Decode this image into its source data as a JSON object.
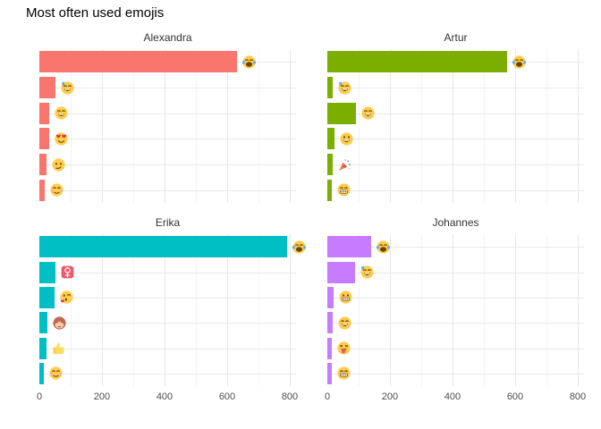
{
  "title": "Most often used emojis",
  "chart_data": {
    "type": "bar",
    "orientation": "horizontal",
    "title": "Most often used emojis",
    "xlim": [
      0,
      820
    ],
    "xticks": [
      0,
      200,
      400,
      600,
      800
    ],
    "grid": true,
    "legend": "none",
    "facet_layout": "2x2",
    "facets": [
      {
        "name": "Alexandra",
        "color": "#F8766D",
        "bars": [
          {
            "char": "😂",
            "icon": "face-with-tears-of-joy",
            "value": 630
          },
          {
            "char": "😅",
            "icon": "smiling-face-with-sweat",
            "value": 50
          },
          {
            "char": "😄",
            "icon": "grinning-face-with-smiling-eyes",
            "value": 32
          },
          {
            "char": "😍",
            "icon": "smiling-face-with-heart-eyes",
            "value": 30
          },
          {
            "char": "😏",
            "icon": "smirking-face",
            "value": 22
          },
          {
            "char": "😊",
            "icon": "smiling-face-with-blush",
            "value": 18
          }
        ]
      },
      {
        "name": "Artur",
        "color": "#7CAE00",
        "bars": [
          {
            "char": "😂",
            "icon": "face-with-tears-of-joy",
            "value": 575
          },
          {
            "char": "😅",
            "icon": "smiling-face-with-sweat",
            "value": 18
          },
          {
            "char": "😄",
            "icon": "grinning-face-with-smiling-eyes",
            "value": 90
          },
          {
            "char": "😀",
            "icon": "grinning-face",
            "value": 22
          },
          {
            "char": "🎉",
            "icon": "party-popper",
            "value": 18
          },
          {
            "char": "😁",
            "icon": "beaming-face-with-smiling-eyes",
            "value": 15
          }
        ]
      },
      {
        "name": "Erika",
        "color": "#00BFC4",
        "bars": [
          {
            "char": "😂",
            "icon": "face-with-tears-of-joy",
            "value": 790
          },
          {
            "char": "♀️",
            "icon": "female-sign",
            "value": 52
          },
          {
            "char": "😘",
            "icon": "face-blowing-a-kiss",
            "value": 48
          },
          {
            "char": "🙈",
            "icon": "see-no-evil-monkey",
            "value": 26
          },
          {
            "char": "👍",
            "icon": "thumbs-up",
            "value": 23
          },
          {
            "char": "😊",
            "icon": "smiling-face-with-blush",
            "value": 15
          }
        ]
      },
      {
        "name": "Johannes",
        "color": "#C77CFF",
        "bars": [
          {
            "char": "😂",
            "icon": "face-with-tears-of-joy",
            "value": 140
          },
          {
            "char": "😅",
            "icon": "smiling-face-with-sweat",
            "value": 88
          },
          {
            "char": "😬",
            "icon": "grimacing-face",
            "value": 20
          },
          {
            "char": "😄",
            "icon": "grinning-face-with-smiling-eyes",
            "value": 17
          },
          {
            "char": "😝",
            "icon": "squinting-face-with-tongue",
            "value": 15
          },
          {
            "char": "😁",
            "icon": "beaming-face-with-smiling-eyes",
            "value": 13
          }
        ]
      }
    ]
  }
}
